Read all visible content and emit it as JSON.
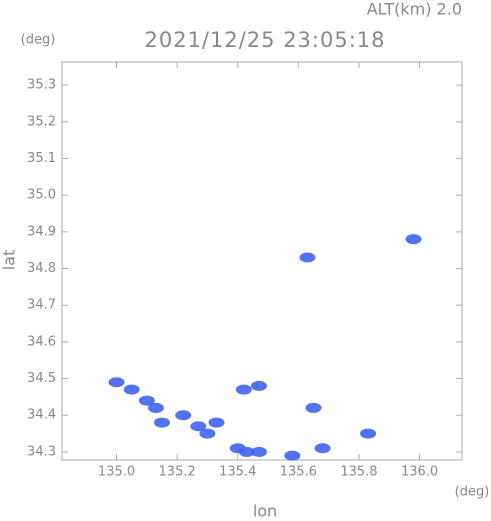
{
  "chart_data": {
    "type": "scatter",
    "title": "2021/12/25 23:05:18",
    "subtitle": "ALT(km) 2.0",
    "y_unit": "(deg)",
    "x_unit": "(deg)",
    "x_label": "lon",
    "y_label": "lat",
    "color": "#3f63ee",
    "x": [
      135.0,
      135.05,
      135.1,
      135.13,
      135.15,
      135.22,
      135.27,
      135.3,
      135.33,
      135.4,
      135.43,
      135.47,
      135.47,
      135.42,
      135.58,
      135.65,
      135.68,
      135.83,
      135.63,
      135.98
    ],
    "values": [
      34.49,
      34.47,
      34.44,
      34.42,
      34.38,
      34.4,
      34.37,
      34.35,
      34.38,
      34.31,
      34.3,
      34.3,
      34.48,
      34.47,
      34.29,
      34.42,
      34.31,
      34.35,
      34.83,
      34.88
    ],
    "xlim": [
      134.82,
      136.14
    ],
    "ylim": [
      34.278,
      35.363
    ],
    "xticks": [
      {
        "value": 135.0,
        "label": "135.0"
      },
      135.2,
      135.4,
      135.6,
      135.8,
      {
        "value": 136.0,
        "label": "136.0"
      }
    ],
    "yticks": [
      34.3,
      34.4,
      34.5,
      34.6,
      34.7,
      34.8,
      34.9,
      {
        "value": 35.0,
        "label": "35.0"
      },
      35.1,
      35.2,
      35.3
    ]
  }
}
